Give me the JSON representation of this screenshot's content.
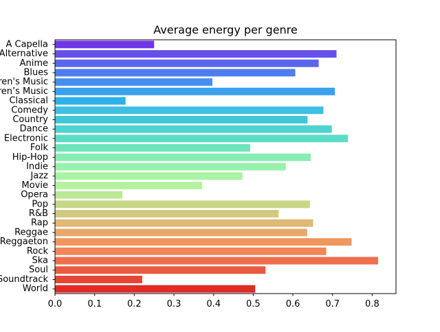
{
  "chart_data": {
    "type": "bar",
    "orientation": "horizontal",
    "title": "Average energy per genre",
    "xlabel": "",
    "ylabel": "",
    "xlim": [
      0,
      0.86
    ],
    "xticks": [
      "0.0",
      "0.1",
      "0.2",
      "0.3",
      "0.4",
      "0.5",
      "0.6",
      "0.7",
      "0.8"
    ],
    "grid": false,
    "categories": [
      "A Capella",
      "Alternative",
      "Anime",
      "Blues",
      "Children's Music",
      "Children’s Music",
      "Classical",
      "Comedy",
      "Country",
      "Dance",
      "Electronic",
      "Folk",
      "Hip-Hop",
      "Indie",
      "Jazz",
      "Movie",
      "Opera",
      "Pop",
      "R&B",
      "Rap",
      "Reggae",
      "Reggaeton",
      "Rock",
      "Ska",
      "Soul",
      "Soundtrack",
      "World"
    ],
    "values": [
      0.25,
      0.71,
      0.665,
      0.606,
      0.397,
      0.706,
      0.178,
      0.677,
      0.637,
      0.698,
      0.739,
      0.492,
      0.645,
      0.582,
      0.473,
      0.371,
      0.17,
      0.643,
      0.564,
      0.651,
      0.636,
      0.748,
      0.684,
      0.815,
      0.531,
      0.22,
      0.505
    ],
    "colors": [
      "#6f37e7",
      "#6551ea",
      "#5a66ec",
      "#4f7cee",
      "#4590ef",
      "#3aa1ee",
      "#2db1ea",
      "#3fbfe1",
      "#3fc7d8",
      "#4ed3d0",
      "#5cdcc6",
      "#6de4bc",
      "#86edb4",
      "#98f1ad",
      "#aaf3a5",
      "#b5f2a0",
      "#bbe894",
      "#c8d687",
      "#d3c97e",
      "#e0b976",
      "#e9a86b",
      "#f0965f",
      "#f38557",
      "#ef6e4b",
      "#e95a40",
      "#e44636",
      "#df2c25"
    ]
  }
}
